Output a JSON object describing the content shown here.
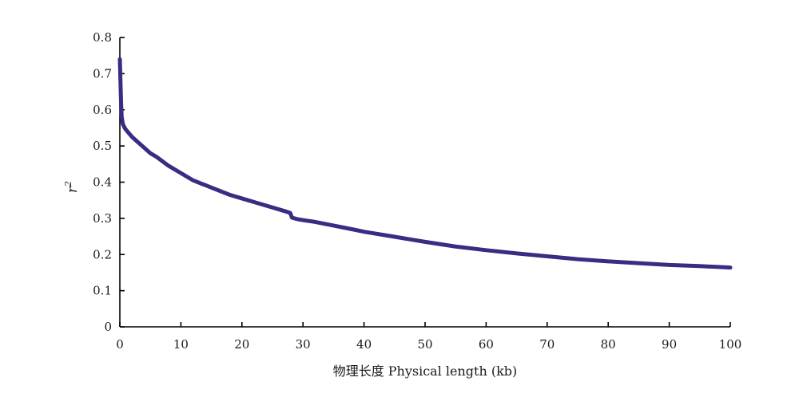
{
  "chart_data": {
    "type": "line",
    "title": "",
    "xlabel": "物理长度 Physical length (kb)",
    "ylabel": "r",
    "ylabel_superscript": "2",
    "xlim": [
      0,
      100
    ],
    "ylim": [
      0,
      0.8
    ],
    "x_ticks": [
      0,
      10,
      20,
      30,
      40,
      50,
      60,
      70,
      80,
      90,
      100
    ],
    "y_ticks": [
      0,
      0.1,
      0.2,
      0.3,
      0.4,
      0.5,
      0.6,
      0.7,
      0.8
    ],
    "x_tick_labels": [
      "0",
      "10",
      "20",
      "30",
      "40",
      "50",
      "60",
      "70",
      "80",
      "90",
      "100"
    ],
    "y_tick_labels": [
      "0",
      "0.1",
      "0.2",
      "0.3",
      "0.4",
      "0.5",
      "0.6",
      "0.7",
      "0.8"
    ],
    "grid": false,
    "legend": "none",
    "colors": {
      "series": "#3d2a82",
      "axis": "#000000"
    },
    "series": [
      {
        "x": [
          0,
          0.1,
          0.2,
          0.3,
          0.5,
          0.8,
          1,
          2,
          3,
          4,
          5,
          6,
          8,
          10,
          12,
          15,
          18,
          20,
          22,
          25,
          27,
          27.9,
          28.2,
          29,
          30,
          32,
          35,
          38,
          40,
          45,
          50,
          55,
          60,
          65,
          70,
          75,
          80,
          85,
          90,
          95,
          100
        ],
        "y": [
          0.74,
          0.68,
          0.62,
          0.58,
          0.56,
          0.55,
          0.545,
          0.525,
          0.51,
          0.495,
          0.48,
          0.47,
          0.445,
          0.425,
          0.405,
          0.385,
          0.365,
          0.355,
          0.345,
          0.33,
          0.32,
          0.315,
          0.302,
          0.298,
          0.295,
          0.29,
          0.28,
          0.27,
          0.263,
          0.249,
          0.235,
          0.222,
          0.212,
          0.203,
          0.195,
          0.187,
          0.181,
          0.176,
          0.171,
          0.168,
          0.164
        ]
      }
    ]
  }
}
